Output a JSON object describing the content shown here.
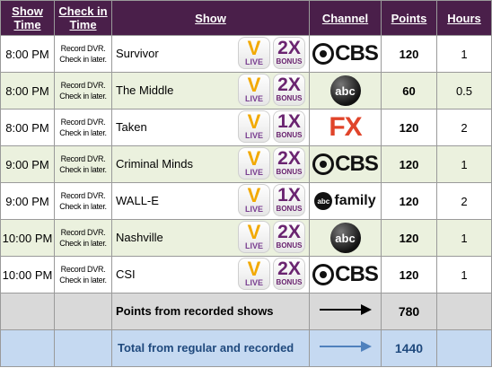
{
  "header": {
    "show_time": "Show Time",
    "check_in_time": "Check in Time",
    "show": "Show",
    "channel": "Channel",
    "points": "Points",
    "hours": "Hours"
  },
  "badges": {
    "v_letter": "V",
    "live": "LIVE",
    "bonus": "BONUS"
  },
  "rows": [
    {
      "time": "8:00 PM",
      "checkin_1": "Record DVR.",
      "checkin_2": "Check in later.",
      "show": "Survivor",
      "multiplier": "2X",
      "channel": "CBS",
      "points": "120",
      "hours": "1"
    },
    {
      "time": "8:00 PM",
      "checkin_1": "Record DVR.",
      "checkin_2": "Check in later.",
      "show": "The Middle",
      "multiplier": "2X",
      "channel": "abc",
      "points": "60",
      "hours": "0.5"
    },
    {
      "time": "8:00 PM",
      "checkin_1": "Record DVR.",
      "checkin_2": "Check in later.",
      "show": "Taken",
      "multiplier": "1X",
      "channel": "FX",
      "points": "120",
      "hours": "2"
    },
    {
      "time": "9:00 PM",
      "checkin_1": "Record DVR.",
      "checkin_2": "Check in later.",
      "show": "Criminal Minds",
      "multiplier": "2X",
      "channel": "CBS",
      "points": "120",
      "hours": "1"
    },
    {
      "time": "9:00 PM",
      "checkin_1": "Record DVR.",
      "checkin_2": "Check in later.",
      "show": "WALL-E",
      "multiplier": "1X",
      "channel": "family",
      "channel_prefix": "abc",
      "points": "120",
      "hours": "2"
    },
    {
      "time": "10:00 PM",
      "checkin_1": "Record DVR.",
      "checkin_2": "Check in later.",
      "show": "Nashville",
      "multiplier": "2X",
      "channel": "abc",
      "points": "120",
      "hours": "1"
    },
    {
      "time": "10:00 PM",
      "checkin_1": "Record DVR.",
      "checkin_2": "Check in later.",
      "show": "CSI",
      "multiplier": "2X",
      "channel": "CBS",
      "points": "120",
      "hours": "1"
    }
  ],
  "summary": {
    "recorded_label": "Points from recorded shows",
    "recorded_value": "780",
    "total_label": "Total from regular and recorded",
    "total_value": "1440"
  },
  "colors": {
    "header_bg": "#4a1f4a",
    "alt_row": "#ebf1de",
    "summary_gray": "#d9d9d9",
    "summary_blue": "#c5d9f1",
    "total_text": "#1f497d",
    "fx_red": "#e0442a",
    "bonus_purple": "#6a2470",
    "v_gold": "#f2a900"
  },
  "icons": {
    "vlive": "v-live-badge-icon",
    "bonus": "bonus-multiplier-icon",
    "cbs": "cbs-logo-icon",
    "abc": "abc-logo-icon",
    "fx": "fx-logo-icon",
    "abcfamily": "abc-family-logo-icon",
    "arrow": "right-arrow-icon"
  }
}
